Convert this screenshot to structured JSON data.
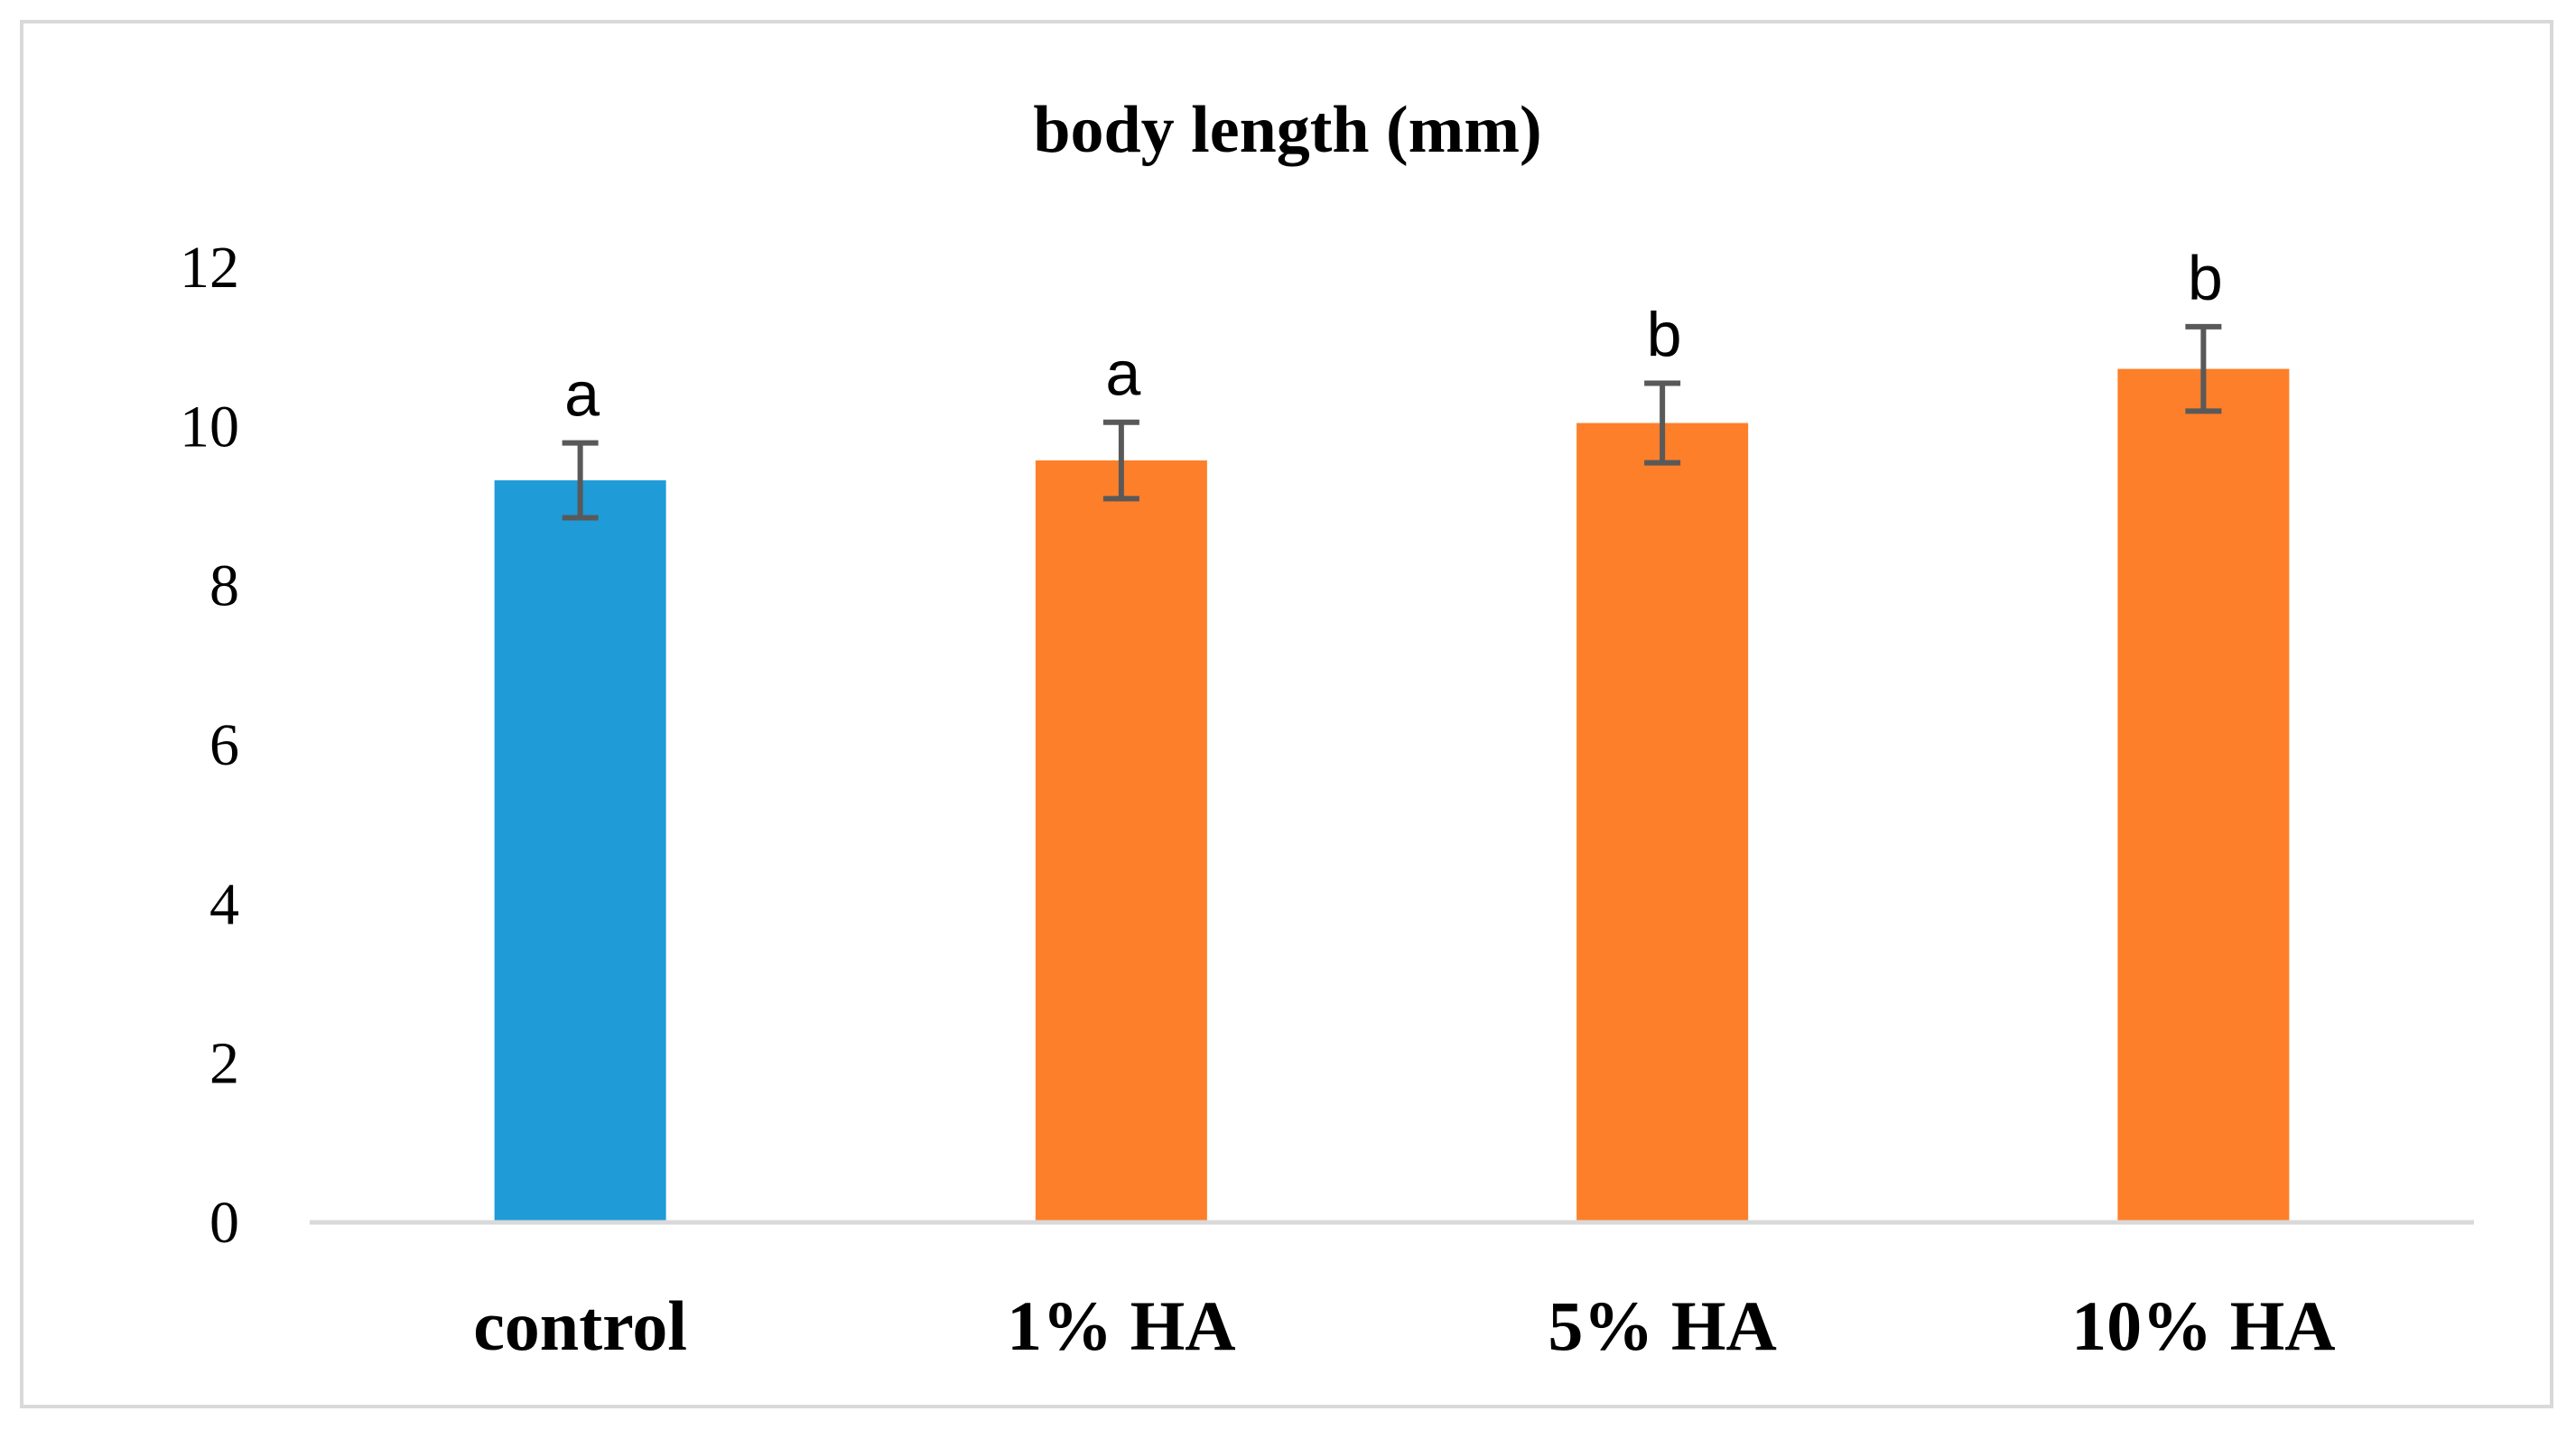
{
  "chart_data": {
    "type": "bar",
    "title": "body length (mm)",
    "categories": [
      "control",
      "1% HA",
      "5% HA",
      "10% HA"
    ],
    "values": [
      9.3,
      9.55,
      10.02,
      10.7
    ],
    "error": [
      0.47,
      0.48,
      0.5,
      0.53
    ],
    "significance_labels": [
      "a",
      "a",
      "b",
      "b"
    ],
    "colors": [
      "#1f9bd8",
      "#fe7f29",
      "#fe7f29",
      "#fe7f29"
    ],
    "error_bar_color": "#595959",
    "axis_color": "#d9d9d9",
    "ylim": [
      0,
      12
    ],
    "yticks": [
      "0",
      "2",
      "4",
      "6",
      "8",
      "10",
      "12"
    ],
    "grid": false,
    "legend": "none"
  }
}
